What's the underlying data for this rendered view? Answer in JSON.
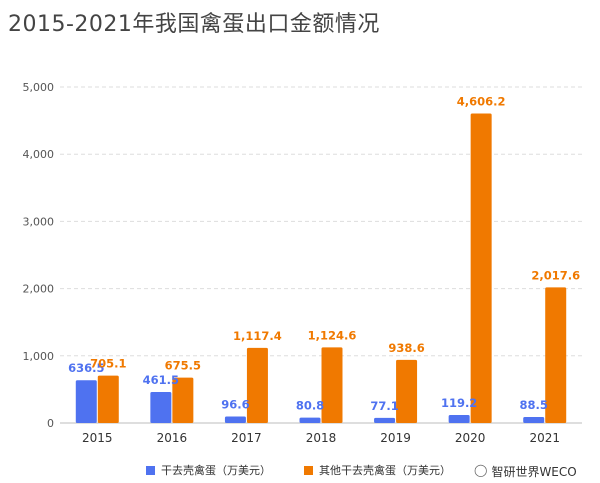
{
  "title": "2015-2021年我国禽蛋出口金额情况",
  "watermark_text": "智研世界WECO",
  "watermark_icon": "weibo-icon",
  "chart_data": {
    "type": "bar",
    "categories": [
      "2015",
      "2016",
      "2017",
      "2018",
      "2019",
      "2020",
      "2021"
    ],
    "series": [
      {
        "name": "干去壳禽蛋（万美元）",
        "color": "#4f72f0",
        "values": [
          636.5,
          461.5,
          96.6,
          80.8,
          77.1,
          119.2,
          88.5
        ],
        "labels": [
          "636.5",
          "461.5",
          "96.6",
          "80.8",
          "77.1",
          "119.2",
          "88.5"
        ]
      },
      {
        "name": "其他干去壳禽蛋（万美元）",
        "color": "#f07900",
        "values": [
          705.1,
          675.5,
          1117.4,
          1124.6,
          938.6,
          4606.2,
          2017.6
        ],
        "labels": [
          "705.1",
          "675.5",
          "1,117.4",
          "1,124.6",
          "938.6",
          "4,606.2",
          "2,017.6"
        ]
      }
    ],
    "ylim": [
      0,
      5000
    ],
    "yticks": [
      "0",
      "1,000",
      "2,000",
      "3,000",
      "4,000",
      "5,000"
    ],
    "ytick_values": [
      0,
      1000,
      2000,
      3000,
      4000,
      5000
    ],
    "grid": true,
    "legend_position": "bottom"
  }
}
